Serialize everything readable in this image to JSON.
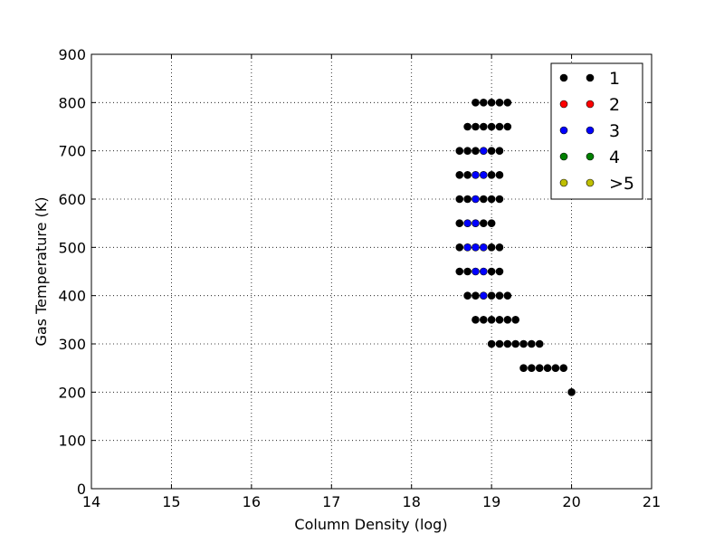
{
  "chart_data": {
    "type": "scatter",
    "xlabel": "Column Density (log)",
    "ylabel": "Gas Temperature (K)",
    "xlim": [
      14,
      21
    ],
    "ylim": [
      0,
      900
    ],
    "xticks": [
      14,
      15,
      16,
      17,
      18,
      19,
      20,
      21
    ],
    "yticks": [
      0,
      100,
      200,
      300,
      400,
      500,
      600,
      700,
      800,
      900
    ],
    "grid": true,
    "legend_position": "top-right",
    "series": [
      {
        "name": "1",
        "color": "#000000",
        "points": [
          [
            18.8,
            800
          ],
          [
            18.9,
            800
          ],
          [
            19.0,
            800
          ],
          [
            19.1,
            800
          ],
          [
            19.2,
            800
          ],
          [
            18.7,
            750
          ],
          [
            18.8,
            750
          ],
          [
            18.9,
            750
          ],
          [
            19.0,
            750
          ],
          [
            19.1,
            750
          ],
          [
            19.2,
            750
          ],
          [
            18.6,
            700
          ],
          [
            18.7,
            700
          ],
          [
            18.8,
            700
          ],
          [
            19.0,
            700
          ],
          [
            19.1,
            700
          ],
          [
            18.6,
            650
          ],
          [
            18.7,
            650
          ],
          [
            19.0,
            650
          ],
          [
            19.1,
            650
          ],
          [
            18.6,
            600
          ],
          [
            18.7,
            600
          ],
          [
            18.9,
            600
          ],
          [
            19.0,
            600
          ],
          [
            19.1,
            600
          ],
          [
            18.6,
            550
          ],
          [
            18.9,
            550
          ],
          [
            19.0,
            550
          ],
          [
            18.6,
            500
          ],
          [
            19.0,
            500
          ],
          [
            19.1,
            500
          ],
          [
            18.6,
            450
          ],
          [
            18.7,
            450
          ],
          [
            19.0,
            450
          ],
          [
            19.1,
            450
          ],
          [
            18.7,
            400
          ],
          [
            18.8,
            400
          ],
          [
            19.0,
            400
          ],
          [
            19.1,
            400
          ],
          [
            19.2,
            400
          ],
          [
            18.8,
            350
          ],
          [
            18.9,
            350
          ],
          [
            19.0,
            350
          ],
          [
            19.1,
            350
          ],
          [
            19.2,
            350
          ],
          [
            19.3,
            350
          ],
          [
            19.0,
            300
          ],
          [
            19.1,
            300
          ],
          [
            19.2,
            300
          ],
          [
            19.3,
            300
          ],
          [
            19.4,
            300
          ],
          [
            19.5,
            300
          ],
          [
            19.6,
            300
          ],
          [
            19.4,
            250
          ],
          [
            19.5,
            250
          ],
          [
            19.6,
            250
          ],
          [
            19.7,
            250
          ],
          [
            19.8,
            250
          ],
          [
            19.9,
            250
          ],
          [
            20.0,
            200
          ]
        ]
      },
      {
        "name": "2",
        "color": "#ff0000",
        "points": []
      },
      {
        "name": "3",
        "color": "#0000ff",
        "points": [
          [
            18.9,
            700
          ],
          [
            18.8,
            650
          ],
          [
            18.9,
            650
          ],
          [
            18.8,
            600
          ],
          [
            18.7,
            550
          ],
          [
            18.8,
            550
          ],
          [
            18.7,
            500
          ],
          [
            18.8,
            500
          ],
          [
            18.9,
            500
          ],
          [
            18.8,
            450
          ],
          [
            18.9,
            450
          ],
          [
            18.9,
            400
          ]
        ]
      },
      {
        "name": "4",
        "color": "#008000",
        "points": []
      },
      {
        "name": ">5",
        "color": "#bfbf00",
        "points": []
      }
    ]
  }
}
